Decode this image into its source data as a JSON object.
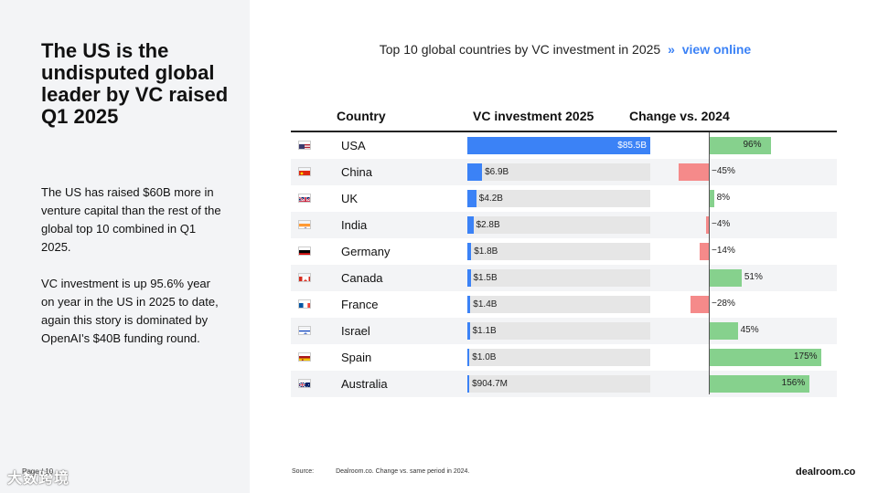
{
  "left": {
    "headline": "The US is the undisputed global leader by VC raised Q1 2025",
    "para1": "The US has raised $60B more in venture capital than the rest of the global top 10 combined in Q1 2025.",
    "para2": "VC investment is up 95.6% year on year in the US in 2025 to date, again this story is dominated by OpenAI's $40B funding round.",
    "page_label": "Page / 10",
    "watermark": "大数跨境"
  },
  "header": {
    "title": "Top 10 global countries by VC investment in 2025",
    "separator": "»",
    "link_label": "view online"
  },
  "chart_data": {
    "type": "table",
    "title": "Top 10 global countries by VC investment in 2025",
    "columns": [
      "Country",
      "VC investment 2025",
      "Change vs. 2024"
    ],
    "rows": [
      {
        "country": "USA",
        "flag": "us-flag-icon",
        "investment_b": 85.5,
        "investment_label": "$85.5B",
        "change_pct": 96,
        "change_label": "96%"
      },
      {
        "country": "China",
        "flag": "china-flag-icon",
        "investment_b": 6.9,
        "investment_label": "$6.9B",
        "change_pct": -45,
        "change_label": "−45%"
      },
      {
        "country": "UK",
        "flag": "uk-flag-icon",
        "investment_b": 4.2,
        "investment_label": "$4.2B",
        "change_pct": 8,
        "change_label": "8%"
      },
      {
        "country": "India",
        "flag": "india-flag-icon",
        "investment_b": 2.8,
        "investment_label": "$2.8B",
        "change_pct": -4,
        "change_label": "−4%"
      },
      {
        "country": "Germany",
        "flag": "germany-flag-icon",
        "investment_b": 1.8,
        "investment_label": "$1.8B",
        "change_pct": -14,
        "change_label": "−14%"
      },
      {
        "country": "Canada",
        "flag": "canada-flag-icon",
        "investment_b": 1.5,
        "investment_label": "$1.5B",
        "change_pct": 51,
        "change_label": "51%"
      },
      {
        "country": "France",
        "flag": "france-flag-icon",
        "investment_b": 1.4,
        "investment_label": "$1.4B",
        "change_pct": -28,
        "change_label": "−28%"
      },
      {
        "country": "Israel",
        "flag": "israel-flag-icon",
        "investment_b": 1.1,
        "investment_label": "$1.1B",
        "change_pct": 45,
        "change_label": "45%"
      },
      {
        "country": "Spain",
        "flag": "spain-flag-icon",
        "investment_b": 1.0,
        "investment_label": "$1.0B",
        "change_pct": 175,
        "change_label": "175%"
      },
      {
        "country": "Australia",
        "flag": "australia-flag-icon",
        "investment_b": 0.9047,
        "investment_label": "$904.7M",
        "change_pct": 156,
        "change_label": "156%"
      }
    ],
    "investment_max_b": 85.5,
    "change_range": [
      -50,
      180
    ]
  },
  "colors": {
    "bar_blue": "#3b82f6",
    "positive": "#86d18d",
    "negative": "#f58a8a",
    "panel": "#f3f4f6"
  },
  "footer": {
    "source_label": "Source:",
    "source_text": "Dealroom.co. Change vs. same period in 2024.",
    "brand": "dealroom.co"
  }
}
